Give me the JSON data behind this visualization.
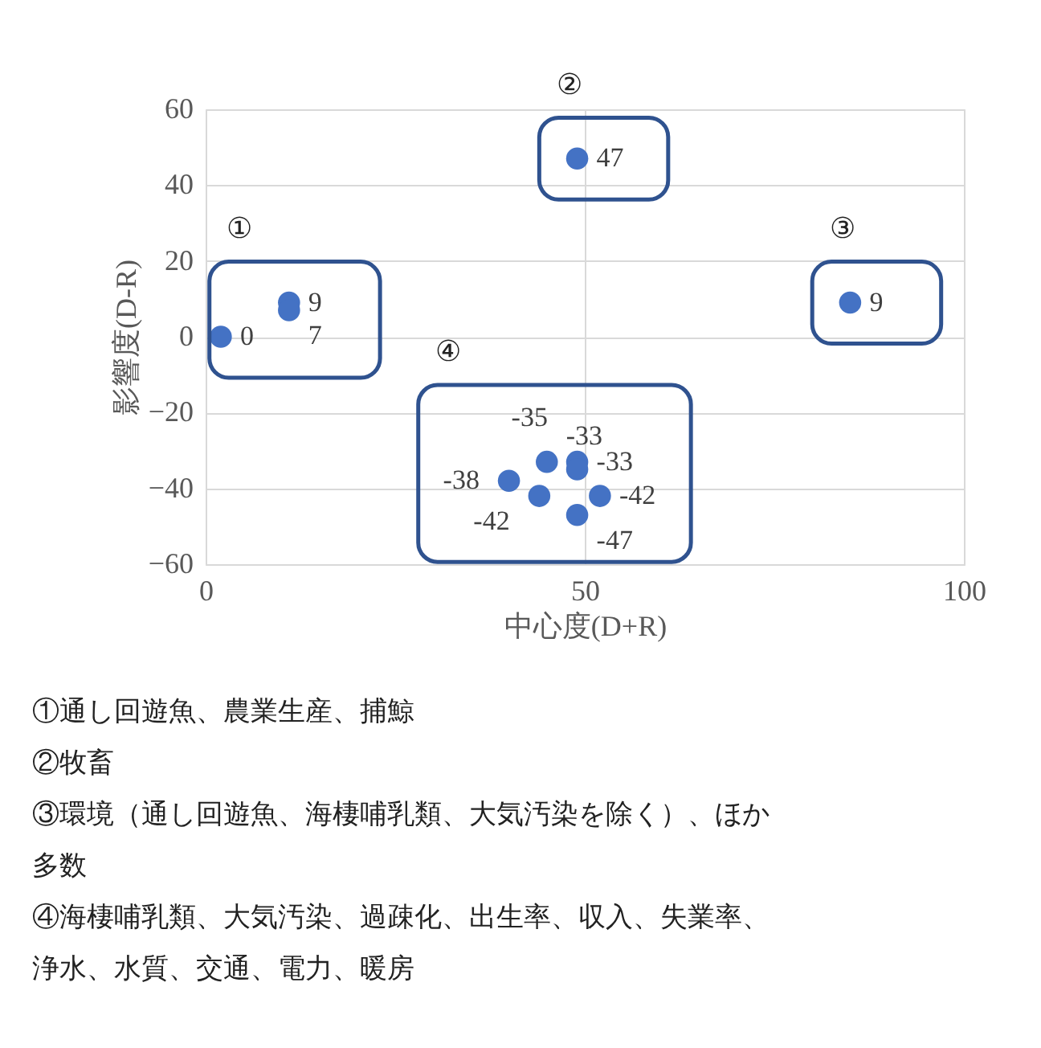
{
  "chart_data": {
    "type": "scatter",
    "xlabel": "中心度(D+R)",
    "ylabel": "影響度(D-R)",
    "series": [
      {
        "color": "#4472c4",
        "x": [
          2,
          11,
          11
        ],
        "values": [
          0,
          9,
          7
        ]
      },
      {
        "color": "#4472c4",
        "x": [
          49
        ],
        "values": [
          47
        ]
      },
      {
        "color": "#4472c4",
        "x": [
          85
        ],
        "values": [
          9
        ]
      },
      {
        "color": "#4472c4",
        "x": [
          45,
          49,
          49,
          40,
          44,
          52,
          49
        ],
        "values": [
          -33,
          -33,
          -35,
          -38,
          -42,
          -42,
          -47
        ]
      }
    ],
    "data_labels": true,
    "marker": "circle",
    "xlim": [
      0,
      100
    ],
    "xticks": [
      0,
      50,
      100
    ],
    "ylim": [
      -60,
      60
    ],
    "yticks": [
      -60,
      -40,
      -20,
      0,
      20,
      40,
      60
    ],
    "grid": true,
    "annotations": [
      "①",
      "②",
      "③",
      "④",
      "①通し回遊魚、農業生産、捕鯨",
      "②牧畜",
      "③環境（通し回遊魚、海棲哺乳類、大気汚染を除く）、ほか",
      "多数",
      "④海棲哺乳類、大気汚染、過疎化、出生率、収入、失業率、",
      "浄水、水質、交通、電力、暖房"
    ]
  }
}
